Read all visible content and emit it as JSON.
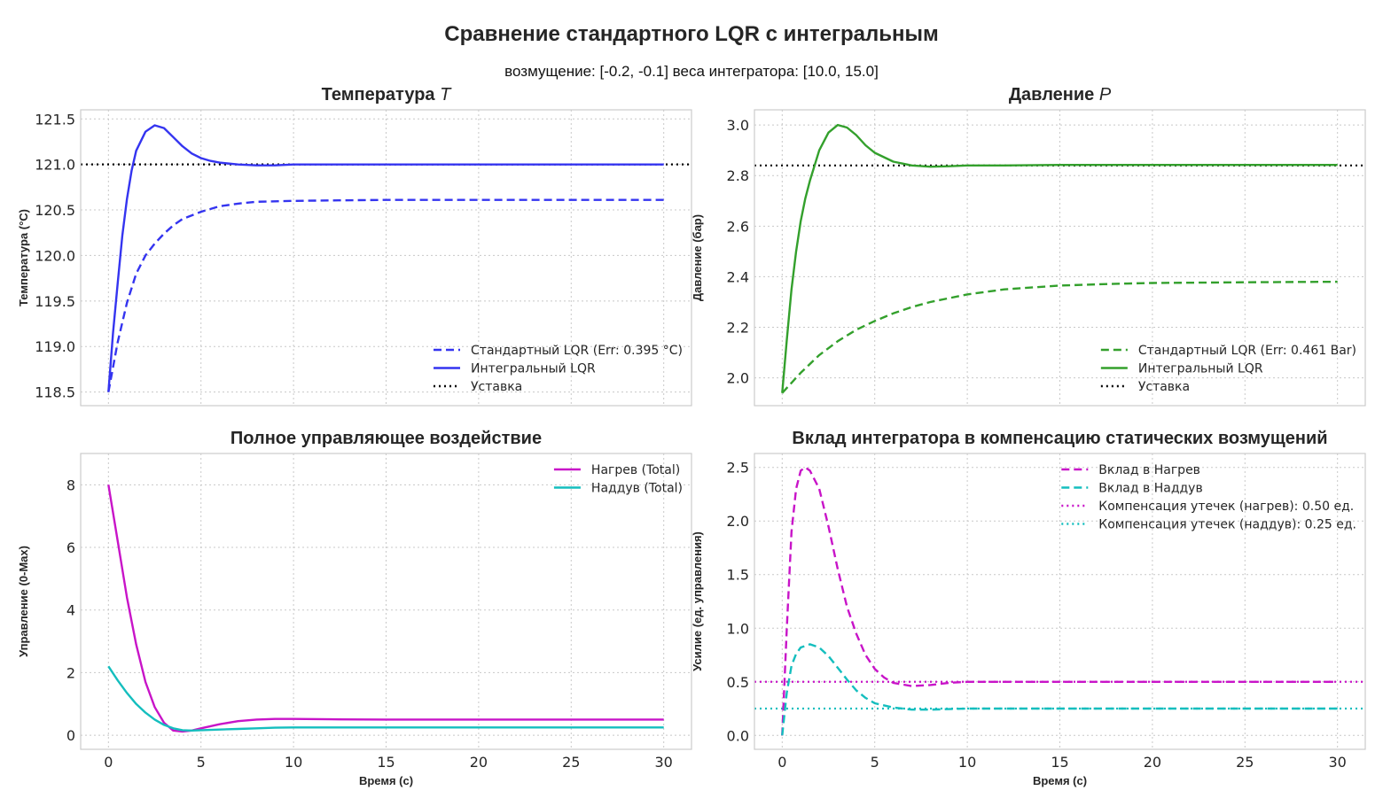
{
  "figure": {
    "title": "Сравнение  стандартного LQR с интегральным",
    "subtitle": "возмущение: [-0.2, -0.1]  веса интегратора: [10.0, 15.0]"
  },
  "colors": {
    "blue": "#3434f0",
    "green": "#33a02c",
    "magenta": "#c814c8",
    "cyan": "#14bebe",
    "black": "#000000"
  },
  "chart_data": [
    {
      "id": "temp",
      "type": "line",
      "title": "Температура",
      "title_var": "T",
      "xlabel": "",
      "ylabel": "Температура (°C)",
      "xlim": [
        -1.5,
        31.5
      ],
      "ylim": [
        118.35,
        121.6
      ],
      "xticks": [
        0,
        5,
        10,
        15,
        20,
        25,
        30
      ],
      "xticklabels": [],
      "yticks": [
        118.5,
        119.0,
        119.5,
        120.0,
        120.5,
        121.0,
        121.5
      ],
      "yticklabels": [
        "118.5",
        "119.0",
        "119.5",
        "120.0",
        "120.5",
        "121.0",
        "121.5"
      ],
      "legend_loc": "lower-right",
      "series": [
        {
          "name": "Стандартный LQR (Err: 0.395 °C)",
          "style": "dashed",
          "color": "#3434f0",
          "x": [
            0,
            0.5,
            1,
            1.5,
            2,
            2.5,
            3,
            3.5,
            4,
            5,
            6,
            7,
            8,
            10,
            12,
            15,
            20,
            25,
            30
          ],
          "y": [
            118.5,
            119.05,
            119.48,
            119.8,
            120.0,
            120.13,
            120.24,
            120.33,
            120.4,
            120.48,
            120.54,
            120.57,
            120.59,
            120.6,
            120.605,
            120.61,
            120.61,
            120.61,
            120.61
          ]
        },
        {
          "name": "Интегральный LQR",
          "style": "solid",
          "color": "#3434f0",
          "x": [
            0,
            0.25,
            0.5,
            0.75,
            1,
            1.25,
            1.5,
            2,
            2.5,
            3,
            3.5,
            4,
            4.5,
            5,
            5.5,
            6,
            7,
            8,
            9,
            10,
            12,
            15,
            20,
            25,
            30
          ],
          "y": [
            118.5,
            119.15,
            119.7,
            120.22,
            120.62,
            120.93,
            121.15,
            121.36,
            121.43,
            121.4,
            121.3,
            121.2,
            121.12,
            121.07,
            121.04,
            121.02,
            121.0,
            120.99,
            120.99,
            121.0,
            121.0,
            121.0,
            121.0,
            121.0,
            121.0
          ]
        }
      ],
      "hlines": [
        {
          "name": "Уставка",
          "y": 121.0,
          "style": "dotted",
          "color": "#000000"
        }
      ]
    },
    {
      "id": "press",
      "type": "line",
      "title": "Давление",
      "title_var": "P",
      "xlabel": "",
      "ylabel": "Давление (бар)",
      "xlim": [
        -1.5,
        31.5
      ],
      "ylim": [
        1.89,
        3.06
      ],
      "xticks": [
        0,
        5,
        10,
        15,
        20,
        25,
        30
      ],
      "xticklabels": [],
      "yticks": [
        2.0,
        2.2,
        2.4,
        2.6,
        2.8,
        3.0
      ],
      "yticklabels": [
        "2.0",
        "2.2",
        "2.4",
        "2.6",
        "2.8",
        "3.0"
      ],
      "legend_loc": "lower-right",
      "series": [
        {
          "name": "Стандартный LQR (Err: 0.461 Bar)",
          "style": "dashed",
          "color": "#33a02c",
          "x": [
            0,
            1,
            2,
            3,
            4,
            5,
            6,
            7,
            8,
            10,
            12,
            15,
            18,
            20,
            25,
            30
          ],
          "y": [
            1.94,
            2.02,
            2.09,
            2.145,
            2.19,
            2.225,
            2.255,
            2.28,
            2.3,
            2.33,
            2.35,
            2.365,
            2.372,
            2.375,
            2.378,
            2.38
          ]
        },
        {
          "name": "Интегральный LQR",
          "style": "solid",
          "color": "#33a02c",
          "x": [
            0,
            0.25,
            0.5,
            0.75,
            1,
            1.25,
            1.5,
            2,
            2.5,
            3,
            3.5,
            4,
            4.5,
            5,
            6,
            7,
            8,
            9,
            10,
            12,
            15,
            20,
            25,
            30
          ],
          "y": [
            1.94,
            2.15,
            2.35,
            2.5,
            2.62,
            2.71,
            2.78,
            2.9,
            2.97,
            3.0,
            2.99,
            2.96,
            2.92,
            2.89,
            2.855,
            2.84,
            2.835,
            2.837,
            2.84,
            2.84,
            2.842,
            2.842,
            2.842,
            2.842
          ]
        }
      ],
      "hlines": [
        {
          "name": "Уставка",
          "y": 2.84,
          "style": "dotted",
          "color": "#000000"
        }
      ]
    },
    {
      "id": "ctrl",
      "type": "line",
      "title": "Полное управляющее воздействие",
      "title_var": "",
      "xlabel": "Время (с)",
      "ylabel": "Управление (0-Max)",
      "xlim": [
        -1.5,
        31.5
      ],
      "ylim": [
        -0.45,
        9.0
      ],
      "xticks": [
        0,
        5,
        10,
        15,
        20,
        25,
        30
      ],
      "xticklabels": [
        "0",
        "5",
        "10",
        "15",
        "20",
        "25",
        "30"
      ],
      "yticks": [
        0,
        2,
        4,
        6,
        8
      ],
      "yticklabels": [
        "0",
        "2",
        "4",
        "6",
        "8"
      ],
      "legend_loc": "upper-right",
      "series": [
        {
          "name": "Нагрев (Total)",
          "style": "solid",
          "color": "#c814c8",
          "x": [
            0,
            0.5,
            1,
            1.5,
            2,
            2.5,
            3,
            3.5,
            4,
            4.5,
            5,
            6,
            7,
            8,
            9,
            10,
            12,
            15,
            20,
            25,
            30
          ],
          "y": [
            8.0,
            6.2,
            4.4,
            2.9,
            1.7,
            0.9,
            0.4,
            0.15,
            0.12,
            0.15,
            0.22,
            0.35,
            0.45,
            0.5,
            0.52,
            0.52,
            0.51,
            0.5,
            0.5,
            0.5,
            0.5
          ]
        },
        {
          "name": "Наддув (Total)",
          "style": "solid",
          "color": "#14bebe",
          "x": [
            0,
            0.5,
            1,
            1.5,
            2,
            2.5,
            3,
            3.5,
            4,
            4.5,
            5,
            6,
            7,
            8,
            9,
            10,
            12,
            15,
            20,
            25,
            30
          ],
          "y": [
            2.2,
            1.75,
            1.35,
            1.0,
            0.72,
            0.5,
            0.33,
            0.22,
            0.16,
            0.15,
            0.16,
            0.18,
            0.2,
            0.22,
            0.24,
            0.25,
            0.25,
            0.25,
            0.25,
            0.25,
            0.25
          ]
        }
      ],
      "hlines": []
    },
    {
      "id": "integ",
      "type": "line",
      "title": "Вклад интегратора в компенсацию статических возмущений",
      "title_var": "",
      "xlabel": "Время (с)",
      "ylabel": "Усилие (ед. управления)",
      "xlim": [
        -1.5,
        31.5
      ],
      "ylim": [
        -0.13,
        2.63
      ],
      "xticks": [
        0,
        5,
        10,
        15,
        20,
        25,
        30
      ],
      "xticklabels": [
        "0",
        "5",
        "10",
        "15",
        "20",
        "25",
        "30"
      ],
      "yticks": [
        0.0,
        0.5,
        1.0,
        1.5,
        2.0,
        2.5
      ],
      "yticklabels": [
        "0.0",
        "0.5",
        "1.0",
        "1.5",
        "2.0",
        "2.5"
      ],
      "legend_loc": "upper-right",
      "series": [
        {
          "name": "Вклад в Нагрев",
          "style": "dashed",
          "color": "#c814c8",
          "x": [
            0,
            0.25,
            0.5,
            0.75,
            1,
            1.25,
            1.5,
            2,
            2.5,
            3,
            3.5,
            4,
            4.5,
            5,
            5.5,
            6,
            7,
            8,
            9,
            10,
            12,
            15,
            20,
            25,
            30
          ],
          "y": [
            0,
            1.0,
            1.9,
            2.3,
            2.47,
            2.5,
            2.47,
            2.3,
            1.95,
            1.55,
            1.2,
            0.95,
            0.75,
            0.62,
            0.54,
            0.49,
            0.46,
            0.47,
            0.49,
            0.5,
            0.5,
            0.5,
            0.5,
            0.5,
            0.5
          ]
        },
        {
          "name": "Вклад в Наддув",
          "style": "dashed",
          "color": "#14bebe",
          "x": [
            0,
            0.25,
            0.5,
            0.75,
            1,
            1.5,
            2,
            2.5,
            3,
            3.5,
            4,
            4.5,
            5,
            6,
            7,
            8,
            9,
            10,
            12,
            15,
            20,
            25,
            30
          ],
          "y": [
            0,
            0.4,
            0.65,
            0.76,
            0.82,
            0.85,
            0.82,
            0.74,
            0.63,
            0.52,
            0.42,
            0.35,
            0.3,
            0.26,
            0.24,
            0.24,
            0.245,
            0.25,
            0.25,
            0.25,
            0.25,
            0.25,
            0.25
          ]
        }
      ],
      "hlines": [
        {
          "name": "Компенсация утечек (нагрев): 0.50 ед.",
          "y": 0.5,
          "style": "dotted",
          "color": "#c814c8"
        },
        {
          "name": "Компенсация утечек (наддув): 0.25 ед.",
          "y": 0.25,
          "style": "dotted",
          "color": "#14bebe"
        }
      ]
    }
  ]
}
